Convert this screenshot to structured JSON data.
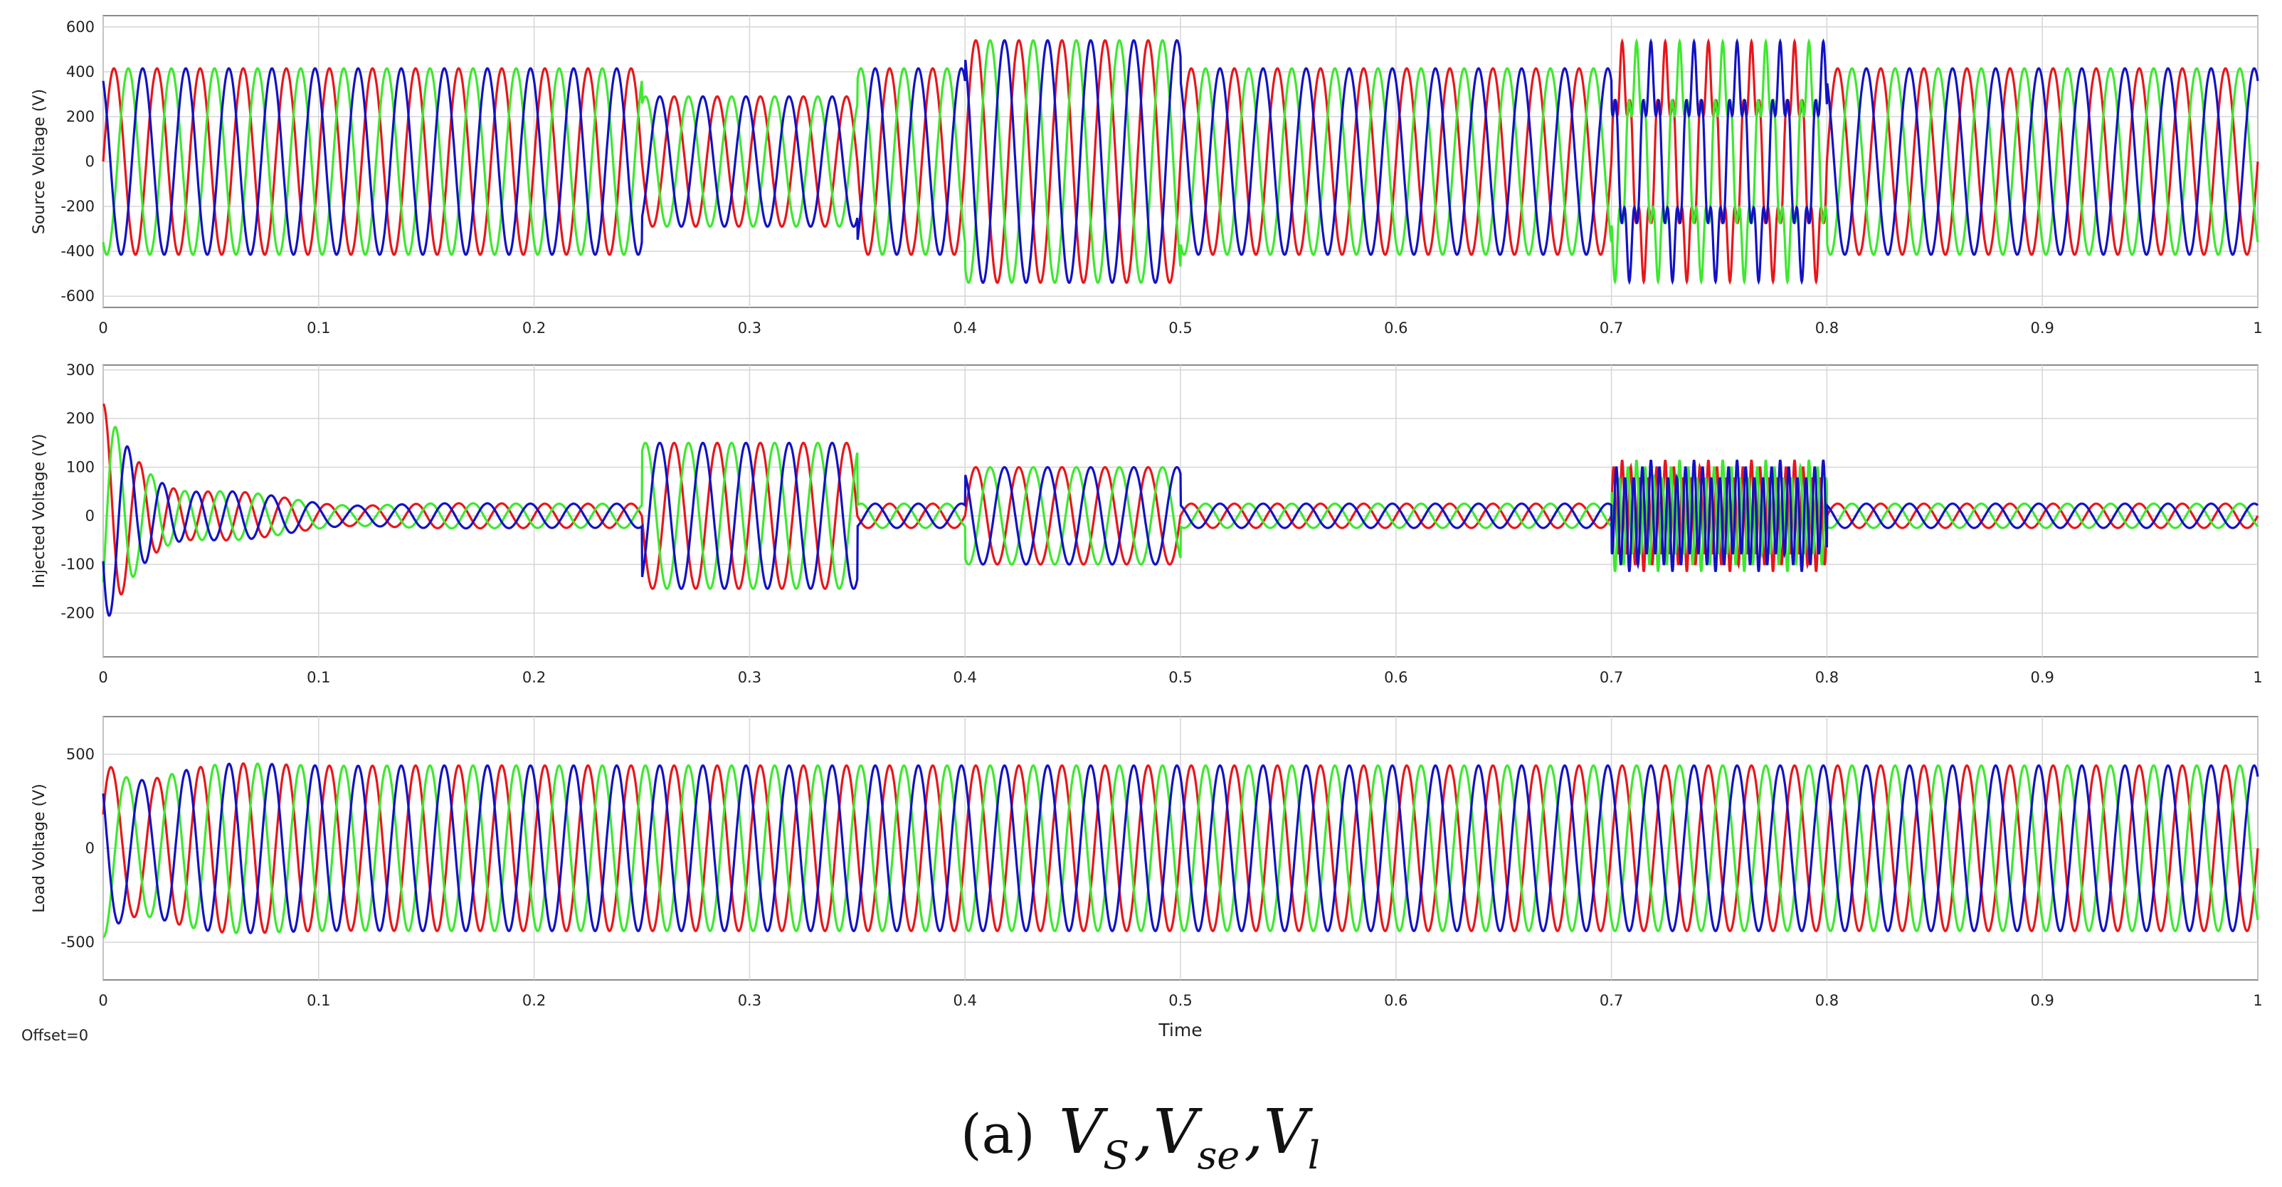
{
  "chart_data": [
    {
      "type": "line",
      "ylabel": "Source Voltage (V)",
      "xlim": [
        0,
        1
      ],
      "ylim": [
        -650,
        650
      ],
      "xticks": [
        0,
        0.1,
        0.2,
        0.3,
        0.4,
        0.5,
        0.6,
        0.7,
        0.8,
        0.9,
        1
      ],
      "xtick_labels": [
        "0",
        "0.1",
        "0.2",
        "0.3",
        "0.4",
        "0.5",
        "0.6",
        "0.7",
        "0.8",
        "0.9",
        "1"
      ],
      "yticks": [
        -600,
        -400,
        -200,
        0,
        200,
        400,
        600
      ],
      "ytick_labels": [
        "-600",
        "-400",
        "-200",
        "0",
        "200",
        "400",
        "600"
      ],
      "grid": true,
      "phase_deg": [
        0,
        -120,
        120
      ],
      "frequency_hz": 50,
      "segments": [
        {
          "t0": 0.0,
          "t1": 0.25,
          "amplitude": 415
        },
        {
          "t0": 0.25,
          "t1": 0.35,
          "amplitude": 290
        },
        {
          "t0": 0.35,
          "t1": 0.4,
          "amplitude": 415
        },
        {
          "t0": 0.4,
          "t1": 0.5,
          "amplitude": 540
        },
        {
          "t0": 0.5,
          "t1": 0.7,
          "amplitude": 415
        },
        {
          "t0": 0.7,
          "t1": 0.8,
          "amplitude": 415,
          "harmonic_amplitude": 120,
          "harmonic_order": 5
        },
        {
          "t0": 0.8,
          "t1": 1.0,
          "amplitude": 415
        }
      ]
    },
    {
      "type": "line",
      "ylabel": "Injected Voltage (V)",
      "xlim": [
        0,
        1
      ],
      "ylim": [
        -290,
        310
      ],
      "xticks": [
        0,
        0.1,
        0.2,
        0.3,
        0.4,
        0.5,
        0.6,
        0.7,
        0.8,
        0.9,
        1
      ],
      "xtick_labels": [
        "0",
        "0.1",
        "0.2",
        "0.3",
        "0.4",
        "0.5",
        "0.6",
        "0.7",
        "0.8",
        "0.9",
        "1"
      ],
      "yticks": [
        -200,
        -100,
        0,
        100,
        200,
        300
      ],
      "ytick_labels": [
        "-200",
        "-100",
        "0",
        "100",
        "200",
        "300"
      ],
      "grid": true,
      "phase_deg": [
        0,
        -120,
        120
      ],
      "frequency_hz": 50,
      "startup_transient": {
        "amplitude": 230,
        "decay_s": 0.03
      },
      "segments": [
        {
          "t0": 0.0,
          "t1": 0.25,
          "amplitude": 25
        },
        {
          "t0": 0.25,
          "t1": 0.35,
          "amplitude": 150
        },
        {
          "t0": 0.35,
          "t1": 0.4,
          "amplitude": 25
        },
        {
          "t0": 0.4,
          "t1": 0.5,
          "amplitude": 100
        },
        {
          "t0": 0.5,
          "t1": 0.7,
          "amplitude": 25
        },
        {
          "t0": 0.7,
          "t1": 0.8,
          "amplitude": 20,
          "harmonic_amplitude": 95,
          "harmonic_order": 5
        },
        {
          "t0": 0.8,
          "t1": 1.0,
          "amplitude": 25
        }
      ]
    },
    {
      "type": "line",
      "ylabel": "Load Voltage (V)",
      "xlabel": "Time",
      "xlim": [
        0,
        1
      ],
      "ylim": [
        -700,
        700
      ],
      "xticks": [
        0,
        0.1,
        0.2,
        0.3,
        0.4,
        0.5,
        0.6,
        0.7,
        0.8,
        0.9,
        1
      ],
      "xtick_labels": [
        "0",
        "0.1",
        "0.2",
        "0.3",
        "0.4",
        "0.5",
        "0.6",
        "0.7",
        "0.8",
        "0.9",
        "1"
      ],
      "yticks": [
        -500,
        0,
        500
      ],
      "ytick_labels": [
        "-500",
        "0",
        "500"
      ],
      "grid": true,
      "phase_deg": [
        0,
        -120,
        120
      ],
      "frequency_hz": 50,
      "startup_transient": {
        "amplitude": 180,
        "decay_s": 0.025
      },
      "segments": [
        {
          "t0": 0.0,
          "t1": 1.0,
          "amplitude": 440
        }
      ]
    }
  ],
  "series_colors": [
    "#e8161b",
    "#3ee82f",
    "#1212c4"
  ],
  "footer": {
    "offset_label": "Offset=0"
  },
  "caption": {
    "label": "(a)",
    "v_s": "V",
    "v_s_sub": "S",
    "v_se": "V",
    "v_se_sub": "se",
    "v_l": "V",
    "v_l_sub": "l",
    "separator": ","
  }
}
